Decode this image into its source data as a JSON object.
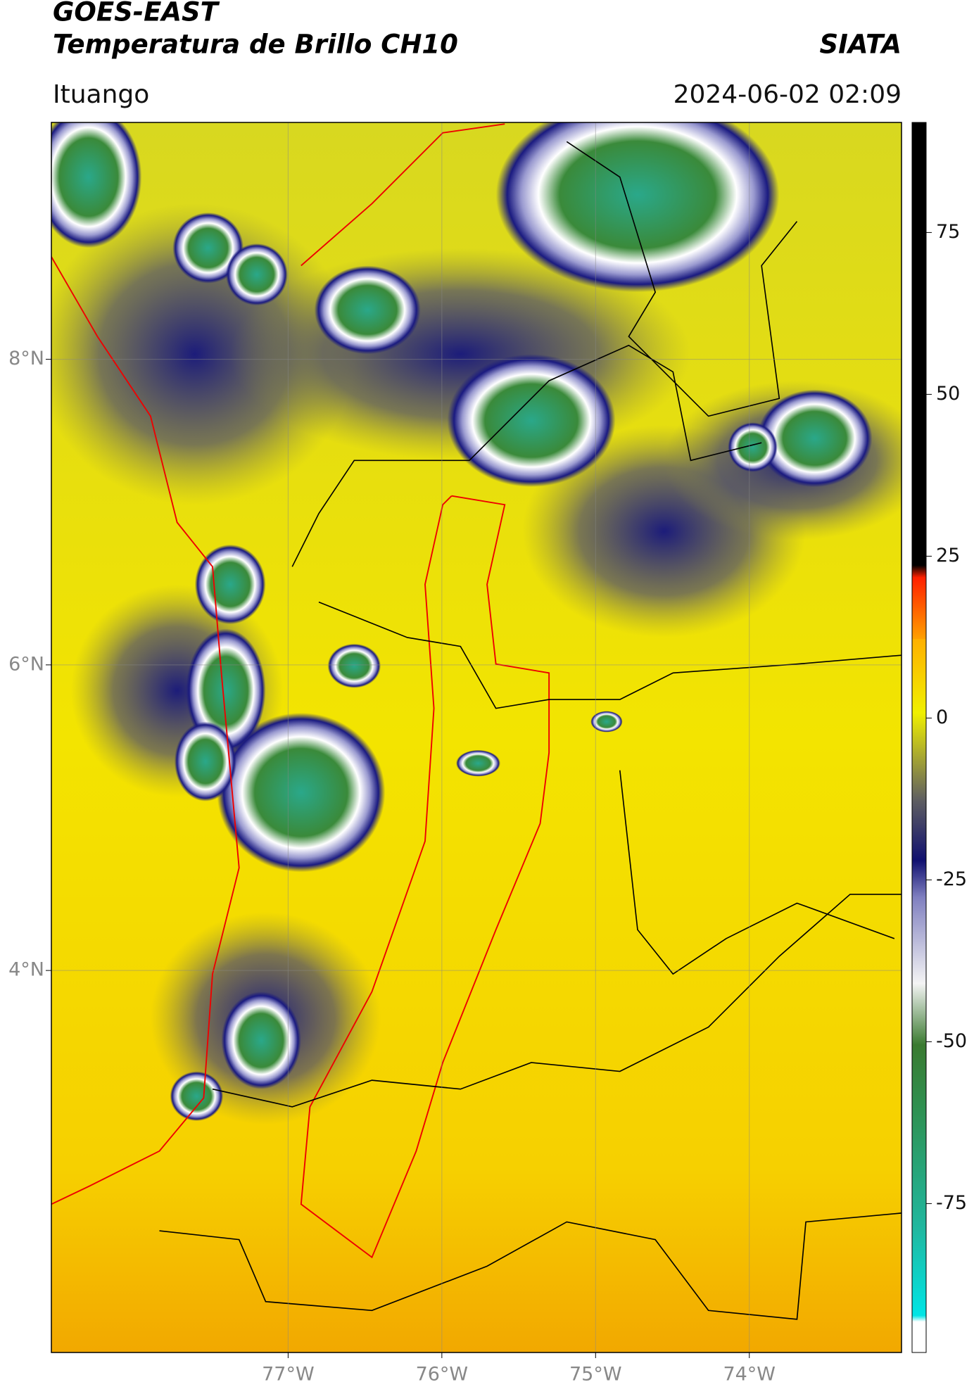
{
  "header": {
    "title": "GOES-EAST",
    "subtitle": "Temperatura de Brillo CH10",
    "agency": "SIATA",
    "location": "Ituango",
    "timestamp": "2024-06-02 02:09"
  },
  "map": {
    "xlim": [
      -78.54,
      -73.01
    ],
    "ylim": [
      1.5,
      9.55
    ],
    "xticks": [
      {
        "value": -77,
        "label": "77°W"
      },
      {
        "value": -76,
        "label": "76°W"
      },
      {
        "value": -75,
        "label": "75°W"
      },
      {
        "value": -74,
        "label": "74°W"
      }
    ],
    "yticks": [
      {
        "value": 8,
        "label": "8°N"
      },
      {
        "value": 6,
        "label": "6°N"
      },
      {
        "value": 4,
        "label": "4°N"
      }
    ],
    "grid": true
  },
  "colorbar": {
    "ylim": [
      -98,
      92
    ],
    "yticks": [
      75,
      50,
      25,
      0,
      -25,
      -50,
      -75
    ]
  }
}
